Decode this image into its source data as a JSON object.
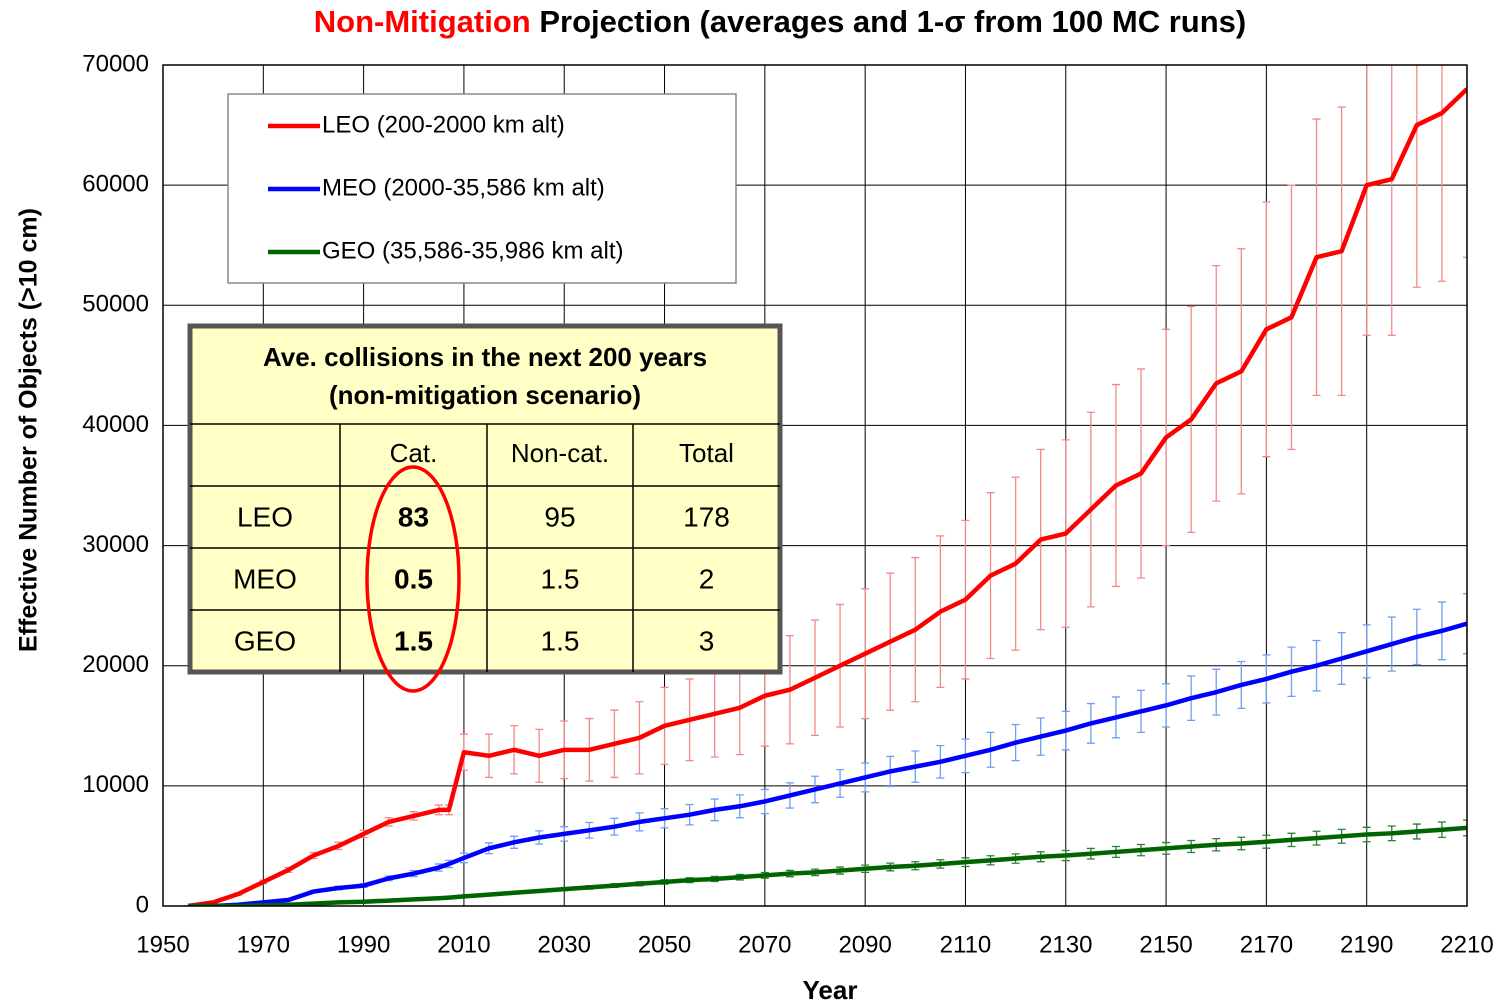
{
  "chart_data": {
    "type": "line",
    "title_highlight": "Non-Mitigation",
    "title": "Projection (averages and 1-σ from 100 MC runs)",
    "x_label": "Year",
    "y_label": "Effective Number of Objects (>10 cm)",
    "x": [
      1955,
      1960,
      1965,
      1970,
      1975,
      1980,
      1985,
      1990,
      1995,
      2000,
      2005,
      2007,
      2010,
      2015,
      2020,
      2025,
      2030,
      2035,
      2040,
      2045,
      2050,
      2055,
      2060,
      2065,
      2070,
      2075,
      2080,
      2085,
      2090,
      2095,
      2100,
      2105,
      2110,
      2115,
      2120,
      2125,
      2130,
      2135,
      2140,
      2145,
      2150,
      2155,
      2160,
      2165,
      2170,
      2175,
      2180,
      2185,
      2190,
      2195,
      2200,
      2205,
      2210
    ],
    "series": [
      {
        "name": "LEO (200-2000 km alt)",
        "color": "#ff0000",
        "error_color": "#f08a8a",
        "values": [
          0,
          300,
          1000,
          2000,
          3000,
          4200,
          5000,
          6000,
          7000,
          7500,
          8000,
          8000,
          12800,
          12500,
          13000,
          12500,
          13000,
          13000,
          13500,
          14000,
          15000,
          15500,
          16000,
          16500,
          17500,
          18000,
          19000,
          20000,
          21000,
          22000,
          23000,
          24500,
          25500,
          27500,
          28500,
          30500,
          31000,
          33000,
          35000,
          36000,
          39000,
          40500,
          43500,
          44500,
          48000,
          49000,
          54000,
          54500,
          60000,
          60500,
          65000,
          66000,
          68000
        ],
        "errors": [
          0,
          50,
          100,
          150,
          200,
          250,
          300,
          300,
          350,
          350,
          400,
          400,
          1500,
          1800,
          2000,
          2200,
          2400,
          2600,
          2800,
          3000,
          3200,
          3400,
          3600,
          3900,
          4200,
          4500,
          4800,
          5100,
          5400,
          5700,
          6000,
          6300,
          6600,
          6900,
          7200,
          7500,
          7800,
          8100,
          8400,
          8700,
          9000,
          9400,
          9800,
          10200,
          10600,
          11000,
          11500,
          12000,
          12500,
          13000,
          13500,
          14000,
          14000
        ]
      },
      {
        "name": "MEO (2000-35,586 km alt)",
        "color": "#0000ff",
        "error_color": "#6f9ff0",
        "values": [
          0,
          0,
          100,
          300,
          500,
          1200,
          1500,
          1700,
          2300,
          2700,
          3200,
          3500,
          4000,
          4800,
          5300,
          5700,
          6000,
          6300,
          6600,
          7000,
          7300,
          7600,
          8000,
          8300,
          8700,
          9200,
          9700,
          10200,
          10700,
          11200,
          11600,
          12000,
          12500,
          13000,
          13600,
          14100,
          14600,
          15200,
          15700,
          16200,
          16700,
          17300,
          17800,
          18400,
          18900,
          19500,
          20000,
          20600,
          21200,
          21800,
          22400,
          22900,
          23500
        ],
        "errors": [
          0,
          0,
          10,
          30,
          50,
          100,
          150,
          150,
          200,
          250,
          300,
          300,
          400,
          450,
          500,
          550,
          600,
          650,
          700,
          750,
          800,
          850,
          900,
          950,
          1000,
          1050,
          1100,
          1150,
          1200,
          1250,
          1300,
          1350,
          1400,
          1450,
          1500,
          1550,
          1600,
          1650,
          1700,
          1750,
          1800,
          1850,
          1900,
          1950,
          2000,
          2050,
          2100,
          2150,
          2200,
          2250,
          2300,
          2400,
          2500
        ]
      },
      {
        "name": "GEO (35,586-35,986 km alt)",
        "color": "#006400",
        "error_color": "#2e7d32",
        "values": [
          0,
          0,
          0,
          50,
          100,
          200,
          300,
          350,
          450,
          550,
          650,
          700,
          800,
          950,
          1100,
          1250,
          1400,
          1550,
          1700,
          1850,
          2000,
          2150,
          2250,
          2400,
          2550,
          2700,
          2800,
          2950,
          3100,
          3250,
          3350,
          3500,
          3650,
          3800,
          3950,
          4100,
          4200,
          4350,
          4500,
          4650,
          4800,
          4950,
          5100,
          5200,
          5350,
          5500,
          5650,
          5800,
          5950,
          6050,
          6200,
          6350,
          6500
        ],
        "errors": [
          0,
          0,
          0,
          10,
          10,
          20,
          30,
          30,
          40,
          50,
          60,
          60,
          70,
          80,
          100,
          110,
          120,
          140,
          150,
          170,
          180,
          200,
          210,
          230,
          240,
          260,
          270,
          290,
          300,
          320,
          330,
          350,
          360,
          380,
          390,
          410,
          420,
          440,
          450,
          470,
          480,
          500,
          510,
          520,
          540,
          550,
          570,
          580,
          600,
          610,
          620,
          640,
          650
        ]
      }
    ],
    "xlim": [
      1950,
      2210
    ],
    "xticks": [
      1950,
      1970,
      1990,
      2010,
      2030,
      2050,
      2070,
      2090,
      2110,
      2130,
      2150,
      2170,
      2190,
      2210
    ],
    "ylim": [
      0,
      70000
    ],
    "yticks": [
      0,
      10000,
      20000,
      30000,
      40000,
      50000,
      60000,
      70000
    ],
    "grid": true,
    "legend": "upper left",
    "inset_table": {
      "title": [
        "Ave. collisions in the next 200 years",
        "(non-mitigation scenario)"
      ],
      "columns": [
        "Cat.",
        "Non-cat.",
        "Total"
      ],
      "rows": [
        [
          "LEO",
          83,
          95,
          178
        ],
        [
          "MEO",
          0.5,
          1.5,
          2
        ],
        [
          "GEO",
          1.5,
          1.5,
          3
        ]
      ]
    }
  }
}
